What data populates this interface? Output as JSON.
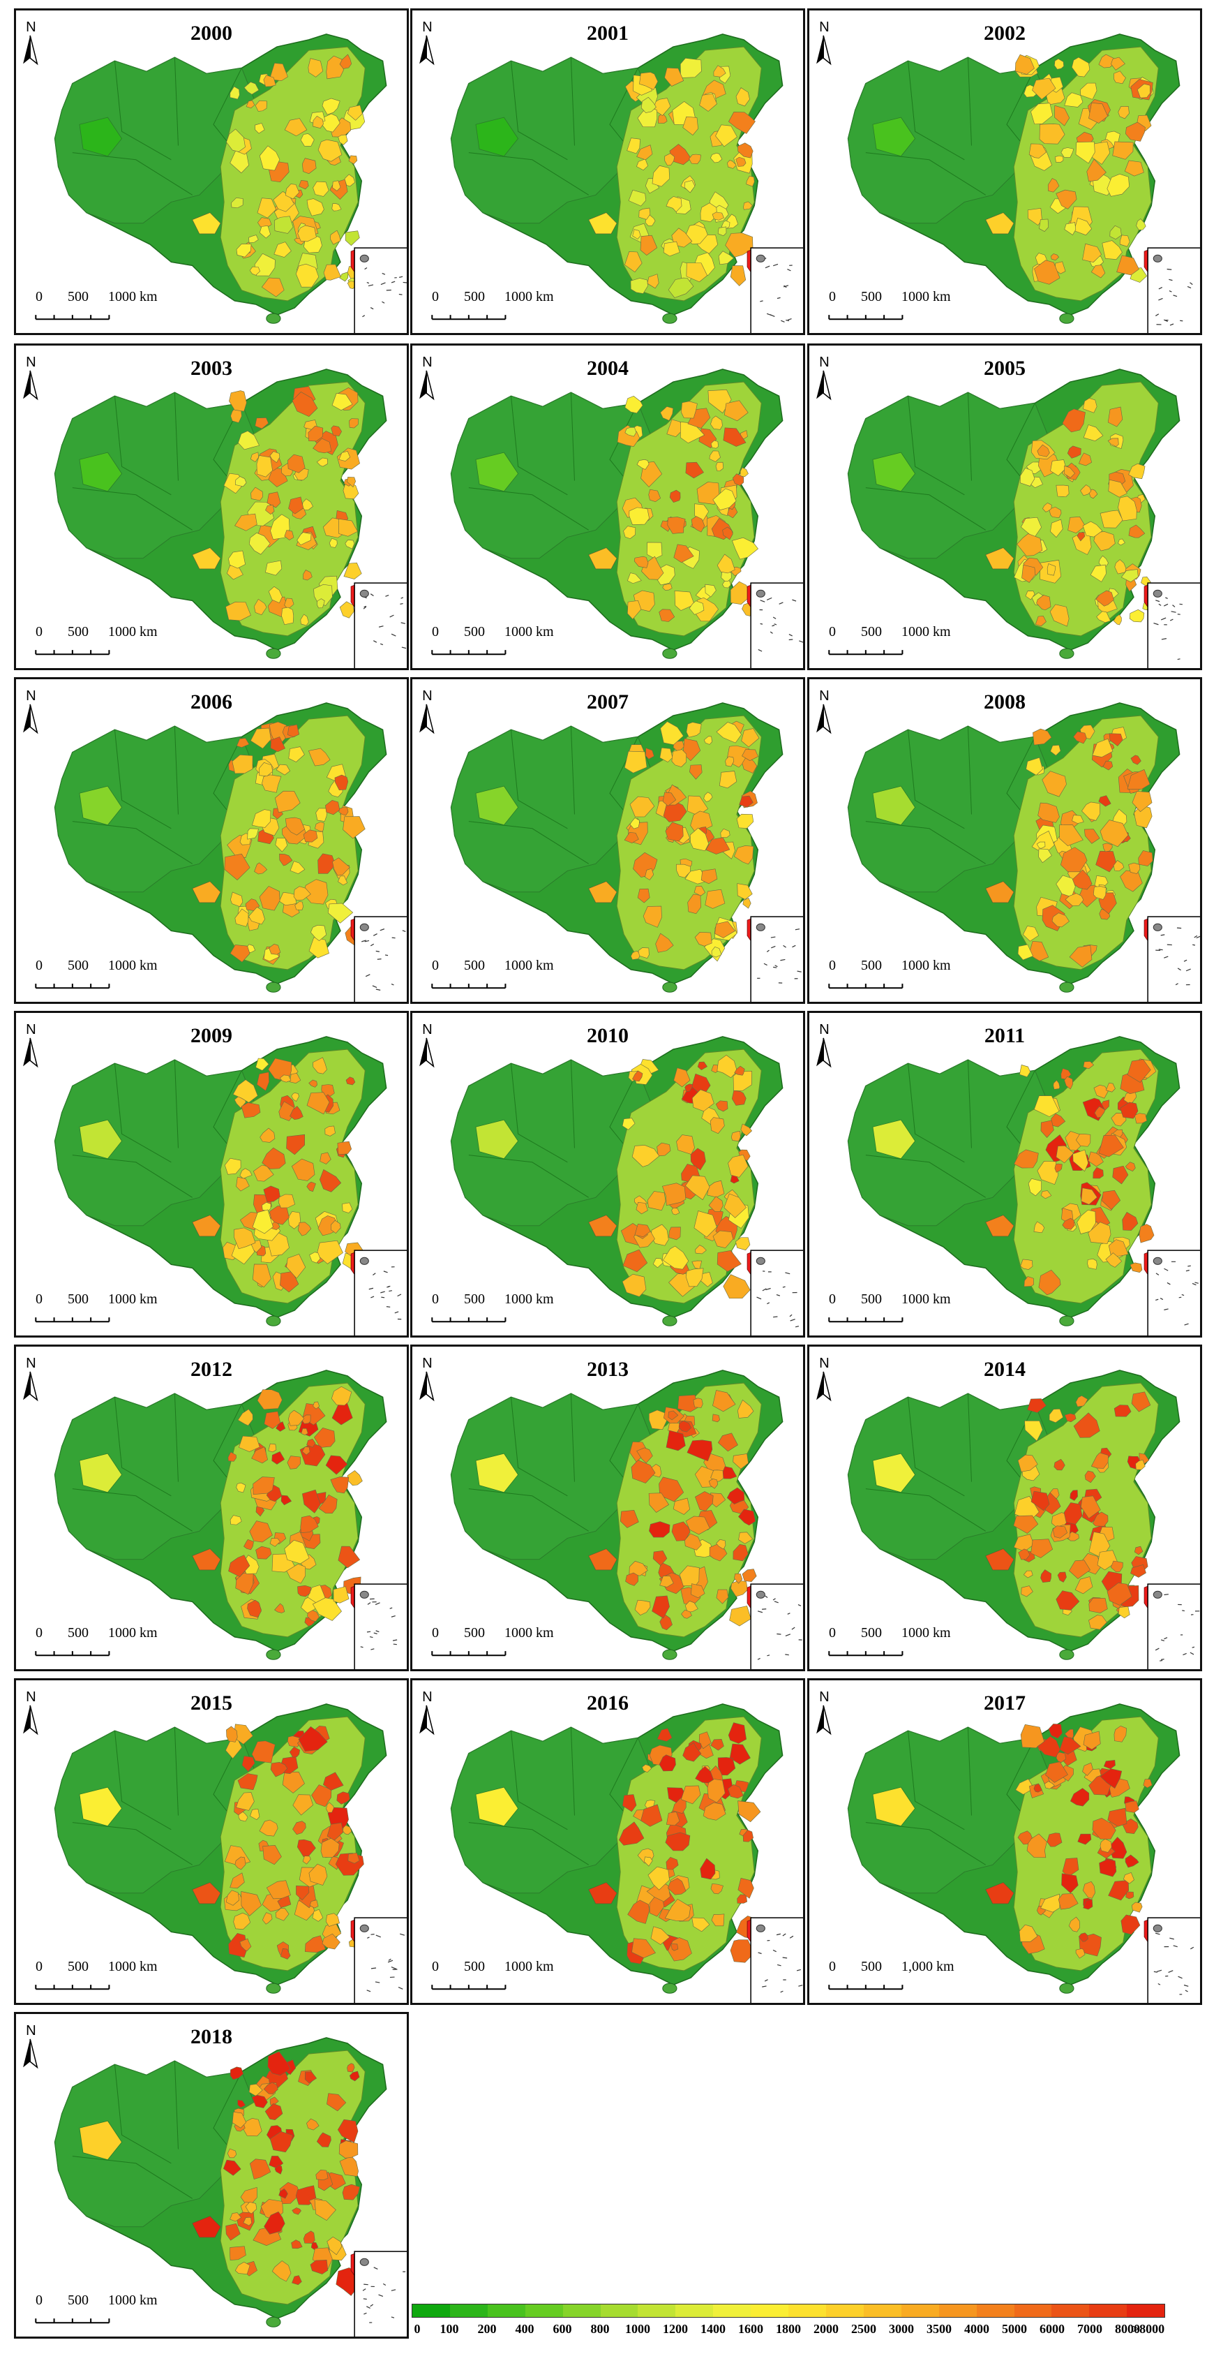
{
  "maps": [
    {
      "year": "2000",
      "scale_labels": [
        "0",
        "500",
        "1000 km"
      ]
    },
    {
      "year": "2001",
      "scale_labels": [
        "0",
        "500",
        "1000 km"
      ]
    },
    {
      "year": "2002",
      "scale_labels": [
        "0",
        "500",
        "1000 km"
      ]
    },
    {
      "year": "2003",
      "scale_labels": [
        "0",
        "500",
        "1000 km"
      ]
    },
    {
      "year": "2004",
      "scale_labels": [
        "0",
        "500",
        "1000 km"
      ]
    },
    {
      "year": "2005",
      "scale_labels": [
        "0",
        "500",
        "1000 km"
      ]
    },
    {
      "year": "2006",
      "scale_labels": [
        "0",
        "500",
        "1000 km"
      ]
    },
    {
      "year": "2007",
      "scale_labels": [
        "0",
        "500",
        "1000 km"
      ]
    },
    {
      "year": "2008",
      "scale_labels": [
        "0",
        "500",
        "1000 km"
      ]
    },
    {
      "year": "2009",
      "scale_labels": [
        "0",
        "500",
        "1000 km"
      ]
    },
    {
      "year": "2010",
      "scale_labels": [
        "0",
        "500",
        "1000 km"
      ]
    },
    {
      "year": "2011",
      "scale_labels": [
        "0",
        "500",
        "1000 km"
      ]
    },
    {
      "year": "2012",
      "scale_labels": [
        "0",
        "500",
        "1000 km"
      ]
    },
    {
      "year": "2013",
      "scale_labels": [
        "0",
        "500",
        "1000 km"
      ]
    },
    {
      "year": "2014",
      "scale_labels": [
        "0",
        "500",
        "1000 km"
      ]
    },
    {
      "year": "2015",
      "scale_labels": [
        "0",
        "500",
        "1000 km"
      ]
    },
    {
      "year": "2016",
      "scale_labels": [
        "0",
        "500",
        "1000 km"
      ]
    },
    {
      "year": "2017",
      "scale_labels": [
        "0",
        "500",
        "1,000 km"
      ]
    },
    {
      "year": "2018",
      "scale_labels": [
        "0",
        "500",
        "1000 km"
      ]
    }
  ],
  "north_label": "N",
  "legend": {
    "labels": [
      "0",
      "100",
      "200",
      "400",
      "600",
      "800",
      "1000",
      "1200",
      "1400",
      "1600",
      "1800",
      "2000",
      "2500",
      "3000",
      "3500",
      "4000",
      "5000",
      "6000",
      "7000",
      "8000",
      ">8000"
    ],
    "colors": [
      "#0fa80f",
      "#2cb51a",
      "#49c21e",
      "#66cc22",
      "#86d42a",
      "#a6dc30",
      "#c2e434",
      "#dcec38",
      "#f0f03a",
      "#fbee33",
      "#fde12e",
      "#fdd02a",
      "#fbbe26",
      "#f9ab22",
      "#f6961f",
      "#f3801c",
      "#f06a19",
      "#ec5416",
      "#e83d13",
      "#e4240f"
    ]
  },
  "colors": {
    "base_green": "#2f9e2f",
    "west_green": "#35a335",
    "hotspot_red": "#e8231a",
    "taiwan_red": "#ee1c1c"
  }
}
